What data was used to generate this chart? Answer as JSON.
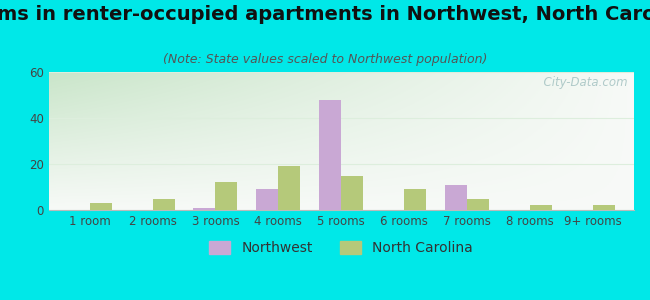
{
  "title": "Rooms in renter-occupied apartments in Northwest, North Carolina",
  "subtitle": "(Note: State values scaled to Northwest population)",
  "categories": [
    "1 room",
    "2 rooms",
    "3 rooms",
    "4 rooms",
    "5 rooms",
    "6 rooms",
    "7 rooms",
    "8 rooms",
    "9+ rooms"
  ],
  "northwest_values": [
    0,
    0,
    1,
    9,
    48,
    0,
    11,
    0,
    0
  ],
  "nc_values": [
    3,
    5,
    12,
    19,
    15,
    9,
    5,
    2,
    2
  ],
  "northwest_color": "#c9a8d4",
  "nc_color": "#b5c97a",
  "background_color": "#00e8e8",
  "ylim": [
    0,
    60
  ],
  "yticks": [
    0,
    20,
    40,
    60
  ],
  "watermark": "  City-Data.com",
  "title_fontsize": 14,
  "subtitle_fontsize": 9,
  "legend_fontsize": 10,
  "tick_fontsize": 8.5,
  "bar_width": 0.35
}
